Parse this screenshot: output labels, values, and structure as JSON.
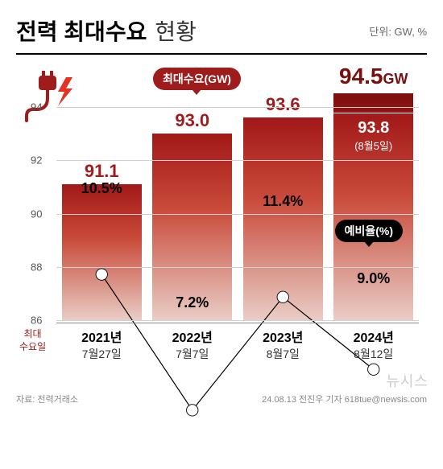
{
  "header": {
    "title_bold": "전력 최대수요",
    "title_light": "현황",
    "unit": "단위: GW, %"
  },
  "legend": {
    "max_demand": "최대수요(GW)",
    "reserve_rate": "예비율(%)"
  },
  "chart": {
    "type": "bar+line",
    "ylim": [
      86,
      94
    ],
    "yticks": [
      86,
      88,
      90,
      92,
      94
    ],
    "grid_color": "#d0d0d0",
    "background_color": "#ffffff",
    "bar_gradient_top": "#a11818",
    "bar_gradient_mid": "#c94a3a",
    "bar_gradient_bottom": "#e9cdc6",
    "outer_bar_top": "#7a0f0f",
    "line_color": "#000000",
    "line_width": 3,
    "marker_fill": "#ffffff",
    "marker_stroke": "#000000",
    "marker_radius": 5,
    "bar_width": 0.78,
    "series": [
      {
        "year": "2021년",
        "date": "7월27일",
        "value": 91.1,
        "value_label": "91.1",
        "reserve": 10.5,
        "reserve_label": "10.5%"
      },
      {
        "year": "2022년",
        "date": "7월7일",
        "value": 93.0,
        "value_label": "93.0",
        "reserve": 7.2,
        "reserve_label": "7.2%"
      },
      {
        "year": "2023년",
        "date": "8월7일",
        "value": 93.6,
        "value_label": "93.6",
        "reserve": 11.4,
        "reserve_label": "11.4%"
      },
      {
        "year": "2024년",
        "date": "8월12일",
        "value": 94.5,
        "value_label": "94.5",
        "value_unit": "GW",
        "inner_value": 93.8,
        "inner_label": "93.8",
        "inner_sub": "(8월5일)",
        "reserve": 9.0,
        "reserve_label": "9.0%"
      }
    ],
    "reserve_display_y": [
      90.3,
      87.3,
      89.8,
      88.2
    ],
    "xaxis_left_label": "최대\n수요일"
  },
  "footer": {
    "source": "자료: 전력거래소",
    "credit": "24.08.13 전진우 기자  618tue@newsis.com",
    "watermark": "뉴시스"
  },
  "icon": {
    "plug_color": "#9e1c1c",
    "bolt_color": "#e53222"
  }
}
